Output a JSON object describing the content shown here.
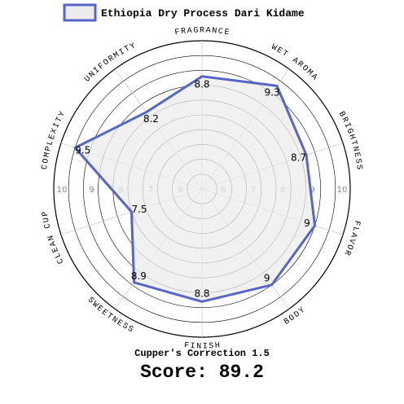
{
  "chart_data": {
    "type": "radar",
    "legend": {
      "label": "Ethiopia Dry Process Dari Kidame",
      "placement": "top"
    },
    "categories": [
      "FRAGRANCE",
      "WET AROMA",
      "BRIGHTNESS",
      "FLAVOR",
      "BODY",
      "FINISH",
      "SWEETNESS",
      "CLEAN CUP",
      "COMPLEXITY",
      "UNIFORMITY"
    ],
    "values": [
      8.8,
      9.3,
      8.7,
      9,
      9,
      8.8,
      8.9,
      7.5,
      9.5,
      8.2
    ],
    "value_labels": [
      "8.8",
      "9.3",
      "8.7",
      "9",
      "9",
      "8.8",
      "8.9",
      "7.5",
      "9.5",
      "8.2"
    ],
    "rlim": [
      5,
      10
    ],
    "tick_values": [
      "6",
      "7",
      "8",
      "9",
      "10"
    ],
    "grid": true,
    "colors": {
      "line": "#5566c8",
      "fill": "#ececec",
      "grid": "#000000",
      "tick_label": "#888888"
    }
  },
  "cuppers_correction": "Cupper's Correction 1.5",
  "score": "Score: 89.2"
}
